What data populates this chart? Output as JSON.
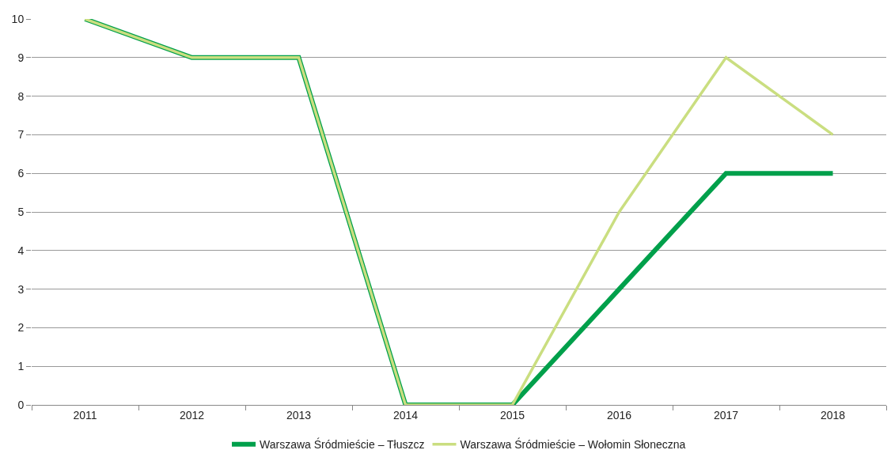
{
  "chart_data": {
    "type": "line",
    "categories": [
      "2011",
      "2012",
      "2013",
      "2014",
      "2015",
      "2016",
      "2017",
      "2018"
    ],
    "series": [
      {
        "name": "Warszawa Śródmieście – Tłuszcz",
        "color": "#00a04b",
        "values": [
          10,
          9,
          9,
          0,
          0,
          3,
          6,
          6
        ]
      },
      {
        "name": "Warszawa Śródmieście – Wołomin Słoneczna",
        "color": "#cade80",
        "values": [
          10,
          9,
          9,
          0,
          0,
          5,
          9,
          7
        ]
      }
    ],
    "ylim": [
      0,
      10
    ],
    "yticks": [
      0,
      1,
      2,
      3,
      4,
      5,
      6,
      7,
      8,
      9,
      10
    ],
    "grid": "y",
    "legend": "bottom",
    "marker": "none",
    "line_style": "solid"
  }
}
